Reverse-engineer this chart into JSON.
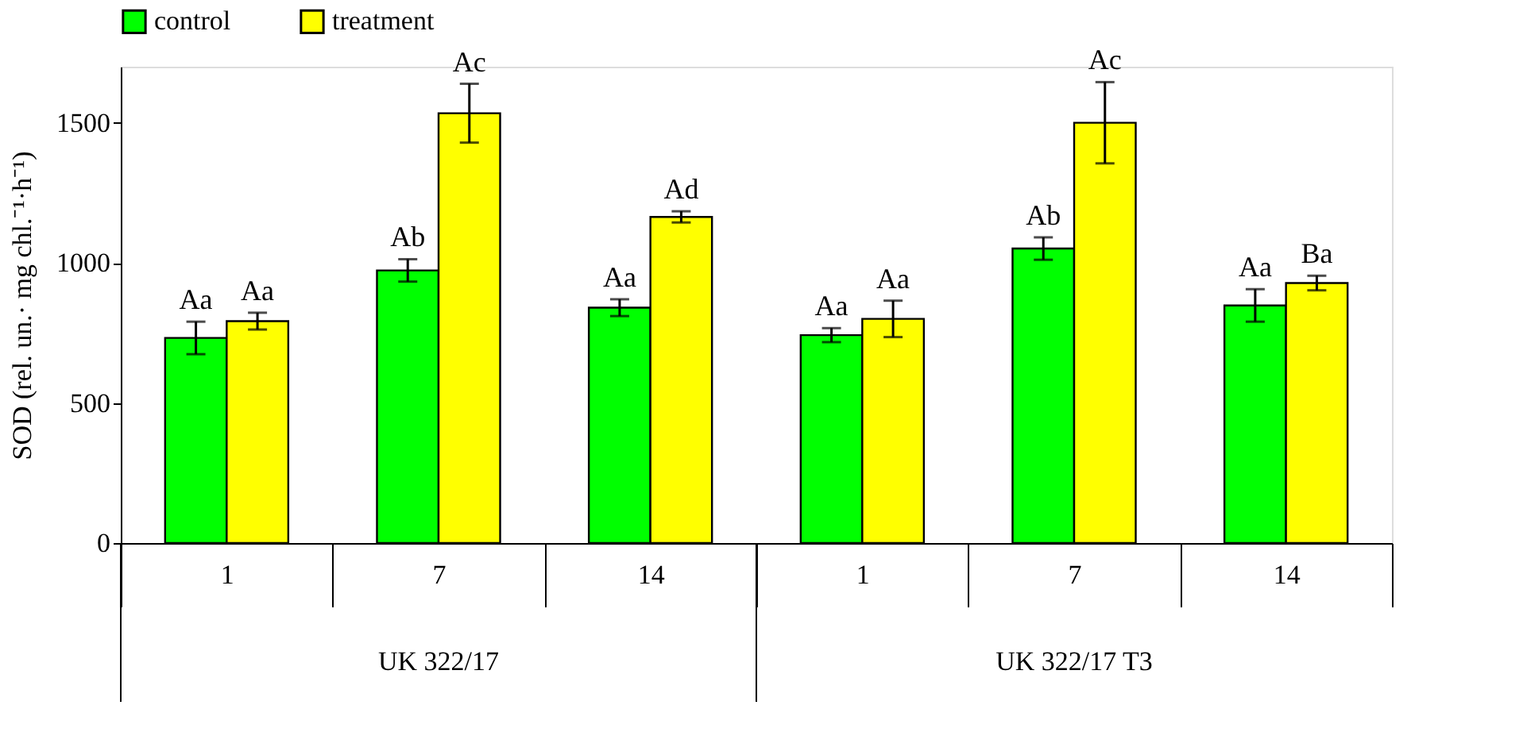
{
  "chart_data": {
    "type": "bar",
    "ylabel": "SOD (rel. un.· mg chl.⁻¹·h⁻¹)",
    "categories": [
      "1",
      "7",
      "14",
      "1",
      "7",
      "14"
    ],
    "series": [
      {
        "name": "control",
        "color": "#00ff00",
        "values": [
          732,
          973,
          840,
          742,
          1051,
          848
        ],
        "errors": [
          58,
          40,
          30,
          25,
          40,
          58
        ],
        "value_labels": [
          "Aa",
          "Ab",
          "Aa",
          "Aa",
          "Ab",
          "Aa"
        ]
      },
      {
        "name": "treatment",
        "color": "#ffff00",
        "values": [
          792,
          1534,
          1164,
          800,
          1500,
          928
        ],
        "errors": [
          30,
          105,
          20,
          65,
          145,
          26
        ],
        "value_labels": [
          "Aa",
          "Ac",
          "Ad",
          "Aa",
          "Ac",
          "Ba"
        ]
      }
    ],
    "ylim": [
      0,
      1700
    ],
    "yticks": [
      0,
      500,
      1000,
      1500
    ],
    "grid": false,
    "legend": "top",
    "annotations": [
      "UK 322/17",
      "UK 322/17 T3"
    ]
  }
}
